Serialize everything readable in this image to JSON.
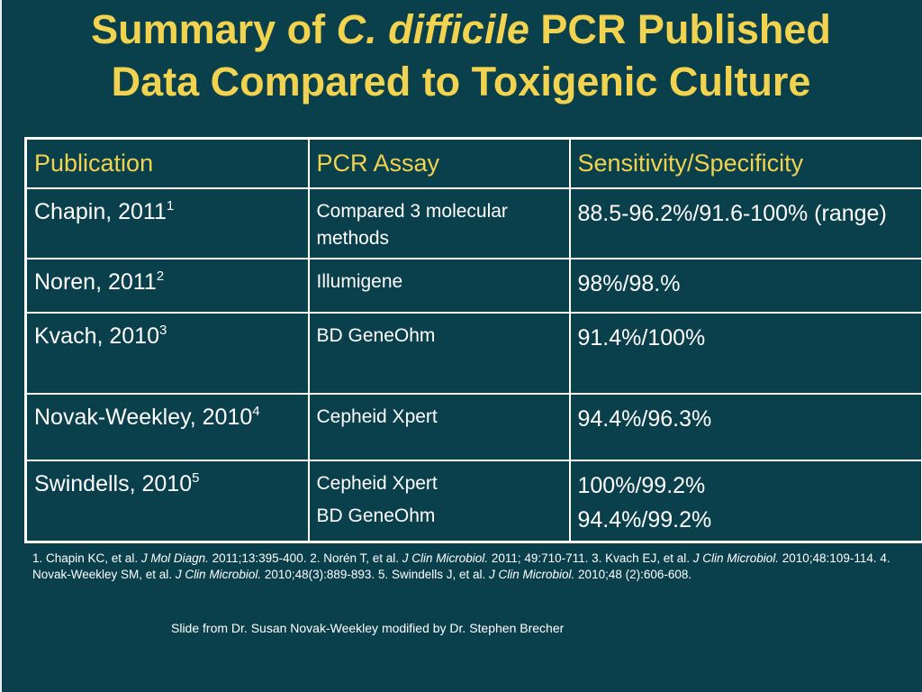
{
  "title": {
    "part1": "Summary of ",
    "italic": "C. difficile",
    "part2": " PCR Published",
    "line2": "Data Compared to Toxigenic Culture"
  },
  "table": {
    "headers": [
      "Publication",
      "PCR Assay",
      "Sensitivity/Specificity"
    ],
    "rows": [
      {
        "pub": "Chapin, 2011",
        "sup": "1",
        "assay": [
          "Compared 3 molecular methods"
        ],
        "sens": [
          "88.5-96.2%/91.6-100% (range)"
        ]
      },
      {
        "pub": "Noren, 2011",
        "sup": "2",
        "assay": [
          "Illumigene"
        ],
        "sens": [
          "98%/98.%"
        ]
      },
      {
        "pub": "Kvach, 2010",
        "sup": "3",
        "assay": [
          "BD GeneOhm"
        ],
        "sens": [
          "91.4%/100%"
        ]
      },
      {
        "pub": "Novak-Weekley, 2010",
        "sup": "4",
        "assay": [
          "Cepheid Xpert"
        ],
        "sens": [
          "94.4%/96.3%"
        ]
      },
      {
        "pub": "Swindells, 2010",
        "sup": "5",
        "assay": [
          "Cepheid Xpert",
          "BD GeneOhm"
        ],
        "sens": [
          "100%/99.2%",
          "94.4%/99.2%"
        ]
      }
    ]
  },
  "references": [
    {
      "text": "1. Chapin KC, et al. ",
      "journal": "J Mol Diagn.",
      "cite": " 2011;13:395-400. "
    },
    {
      "text": "2. Norén T, et al. ",
      "journal": "J Clin Microbiol.",
      "cite": " 2011; 49:710-711. "
    },
    {
      "text": "3. Kvach  EJ, et al. ",
      "journal": "J Clin Microbiol.",
      "cite": " 2010;48:109-114. "
    },
    {
      "text": "4. Novak-Weekley SM, et al. ",
      "journal": "J Clin Microbiol.",
      "cite": " 2010;48(3):889-893. "
    },
    {
      "text": "5. Swindells J, et al. ",
      "journal": "J Clin Microbiol.",
      "cite": " 2010;48 (2):606-608."
    }
  ],
  "credit": "Slide from Dr. Susan Novak-Weekley modified by Dr. Stephen Brecher",
  "colors": {
    "background": "#0a3f4c",
    "title": "#f2d34f",
    "header_text": "#f2d34f",
    "body_text": "#ffffff"
  }
}
